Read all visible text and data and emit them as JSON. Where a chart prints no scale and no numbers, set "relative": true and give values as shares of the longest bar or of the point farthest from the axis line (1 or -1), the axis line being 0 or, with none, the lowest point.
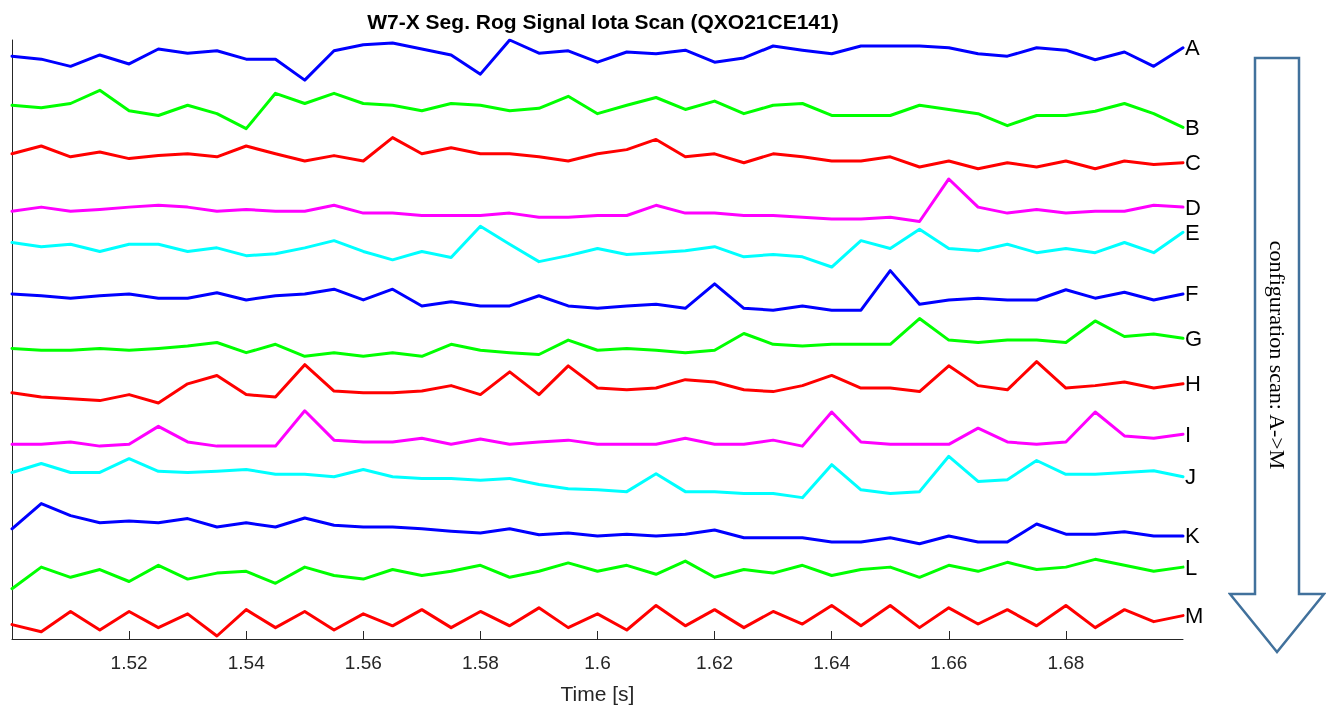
{
  "chart_data": {
    "type": "line",
    "title": "W7-X Seg. Rog Signal Iota Scan (QXO21CE141)",
    "xlabel": "Time [s]",
    "relative": true,
    "legend": false,
    "grid": false,
    "marker": "none",
    "line_style": "solid",
    "tick_labels": "x",
    "xlim": [
      1.5,
      1.7
    ],
    "xticks": [
      1.52,
      1.54,
      1.56,
      1.58,
      1.6,
      1.62,
      1.64,
      1.66,
      1.68
    ],
    "annotations": [
      "configuration scan: A->M"
    ],
    "x": [
      1.5,
      1.505,
      1.51,
      1.515,
      1.52,
      1.525,
      1.53,
      1.535,
      1.54,
      1.545,
      1.55,
      1.555,
      1.56,
      1.565,
      1.57,
      1.575,
      1.58,
      1.585,
      1.59,
      1.595,
      1.6,
      1.605,
      1.61,
      1.615,
      1.62,
      1.625,
      1.63,
      1.635,
      1.64,
      1.645,
      1.65,
      1.655,
      1.66,
      1.665,
      1.67,
      1.675,
      1.68,
      1.685,
      1.69,
      1.695,
      1.7
    ],
    "series": [
      {
        "name": "A",
        "color": "#0000ff",
        "values": [
          0.973,
          0.968,
          0.956,
          0.975,
          0.96,
          0.985,
          0.978,
          0.982,
          0.968,
          0.968,
          0.933,
          0.982,
          0.992,
          0.995,
          0.985,
          0.975,
          0.943,
          1,
          0.978,
          0.982,
          0.963,
          0.98,
          0.977,
          0.983,
          0.963,
          0.97,
          0.99,
          0.983,
          0.977,
          0.99,
          0.99,
          0.99,
          0.987,
          0.977,
          0.973,
          0.987,
          0.983,
          0.967,
          0.98,
          0.956,
          0.987
        ]
      },
      {
        "name": "B",
        "color": "#00ff00",
        "values": [
          0.891,
          0.887,
          0.894,
          0.916,
          0.882,
          0.874,
          0.891,
          0.877,
          0.852,
          0.911,
          0.894,
          0.911,
          0.894,
          0.891,
          0.882,
          0.894,
          0.891,
          0.882,
          0.886,
          0.906,
          0.877,
          0.891,
          0.904,
          0.884,
          0.898,
          0.877,
          0.891,
          0.894,
          0.874,
          0.874,
          0.874,
          0.891,
          0.884,
          0.877,
          0.857,
          0.874,
          0.874,
          0.881,
          0.894,
          0.877,
          0.854
        ]
      },
      {
        "name": "C",
        "color": "#ff0000",
        "values": [
          0.81,
          0.823,
          0.805,
          0.813,
          0.802,
          0.807,
          0.81,
          0.805,
          0.823,
          0.81,
          0.798,
          0.807,
          0.798,
          0.837,
          0.81,
          0.82,
          0.81,
          0.81,
          0.805,
          0.798,
          0.81,
          0.817,
          0.834,
          0.805,
          0.81,
          0.795,
          0.81,
          0.805,
          0.798,
          0.798,
          0.805,
          0.788,
          0.798,
          0.785,
          0.795,
          0.788,
          0.798,
          0.785,
          0.798,
          0.792,
          0.795
        ]
      },
      {
        "name": "D",
        "color": "#ff00ff",
        "values": [
          0.714,
          0.721,
          0.714,
          0.717,
          0.721,
          0.724,
          0.721,
          0.714,
          0.717,
          0.714,
          0.714,
          0.724,
          0.711,
          0.711,
          0.707,
          0.707,
          0.707,
          0.711,
          0.704,
          0.704,
          0.707,
          0.707,
          0.724,
          0.711,
          0.711,
          0.707,
          0.707,
          0.704,
          0.701,
          0.701,
          0.704,
          0.697,
          0.768,
          0.721,
          0.711,
          0.717,
          0.711,
          0.714,
          0.714,
          0.724,
          0.721
        ]
      },
      {
        "name": "E",
        "color": "#00ffff",
        "values": [
          0.662,
          0.655,
          0.659,
          0.647,
          0.659,
          0.659,
          0.647,
          0.653,
          0.64,
          0.643,
          0.653,
          0.665,
          0.647,
          0.633,
          0.647,
          0.637,
          0.689,
          0.659,
          0.63,
          0.64,
          0.652,
          0.642,
          0.645,
          0.648,
          0.655,
          0.638,
          0.642,
          0.638,
          0.621,
          0.665,
          0.652,
          0.684,
          0.652,
          0.648,
          0.659,
          0.645,
          0.652,
          0.645,
          0.662,
          0.645,
          0.679
        ]
      },
      {
        "name": "F",
        "color": "#0000ff",
        "values": [
          0.576,
          0.573,
          0.569,
          0.573,
          0.576,
          0.569,
          0.569,
          0.578,
          0.566,
          0.573,
          0.576,
          0.584,
          0.566,
          0.584,
          0.556,
          0.563,
          0.556,
          0.556,
          0.573,
          0.556,
          0.552,
          0.556,
          0.559,
          0.552,
          0.593,
          0.552,
          0.549,
          0.556,
          0.549,
          0.549,
          0.615,
          0.559,
          0.566,
          0.569,
          0.566,
          0.566,
          0.583,
          0.569,
          0.579,
          0.566,
          0.576
        ]
      },
      {
        "name": "G",
        "color": "#00ff00",
        "values": [
          0.485,
          0.482,
          0.482,
          0.485,
          0.482,
          0.485,
          0.489,
          0.495,
          0.478,
          0.492,
          0.472,
          0.478,
          0.472,
          0.478,
          0.472,
          0.492,
          0.482,
          0.478,
          0.475,
          0.499,
          0.482,
          0.485,
          0.482,
          0.478,
          0.482,
          0.51,
          0.492,
          0.489,
          0.492,
          0.492,
          0.492,
          0.535,
          0.499,
          0.495,
          0.499,
          0.499,
          0.495,
          0.531,
          0.505,
          0.509,
          0.502
        ]
      },
      {
        "name": "H",
        "color": "#ff0000",
        "values": [
          0.411,
          0.404,
          0.401,
          0.398,
          0.408,
          0.394,
          0.426,
          0.44,
          0.408,
          0.404,
          0.458,
          0.414,
          0.411,
          0.411,
          0.414,
          0.423,
          0.408,
          0.446,
          0.408,
          0.456,
          0.419,
          0.416,
          0.419,
          0.433,
          0.429,
          0.416,
          0.413,
          0.423,
          0.44,
          0.419,
          0.419,
          0.413,
          0.456,
          0.423,
          0.416,
          0.463,
          0.419,
          0.423,
          0.429,
          0.419,
          0.426
        ]
      },
      {
        "name": "I",
        "color": "#ff00ff",
        "values": [
          0.325,
          0.325,
          0.329,
          0.322,
          0.325,
          0.355,
          0.329,
          0.322,
          0.322,
          0.322,
          0.381,
          0.332,
          0.329,
          0.329,
          0.335,
          0.325,
          0.334,
          0.325,
          0.329,
          0.332,
          0.325,
          0.325,
          0.325,
          0.335,
          0.325,
          0.325,
          0.332,
          0.322,
          0.379,
          0.329,
          0.325,
          0.325,
          0.325,
          0.352,
          0.329,
          0.325,
          0.329,
          0.379,
          0.339,
          0.335,
          0.342
        ]
      },
      {
        "name": "J",
        "color": "#00ffff",
        "values": [
          0.278,
          0.293,
          0.278,
          0.278,
          0.301,
          0.28,
          0.278,
          0.28,
          0.283,
          0.275,
          0.275,
          0.271,
          0.283,
          0.271,
          0.268,
          0.268,
          0.265,
          0.268,
          0.258,
          0.251,
          0.249,
          0.246,
          0.276,
          0.246,
          0.246,
          0.243,
          0.243,
          0.236,
          0.291,
          0.249,
          0.243,
          0.246,
          0.305,
          0.263,
          0.266,
          0.298,
          0.275,
          0.275,
          0.278,
          0.281,
          0.271
        ]
      },
      {
        "name": "K",
        "color": "#0000ff",
        "values": [
          0.184,
          0.226,
          0.206,
          0.194,
          0.197,
          0.194,
          0.201,
          0.187,
          0.194,
          0.187,
          0.202,
          0.19,
          0.187,
          0.187,
          0.184,
          0.18,
          0.177,
          0.184,
          0.174,
          0.177,
          0.172,
          0.175,
          0.172,
          0.175,
          0.182,
          0.169,
          0.169,
          0.169,
          0.162,
          0.162,
          0.169,
          0.159,
          0.172,
          0.162,
          0.162,
          0.192,
          0.175,
          0.175,
          0.179,
          0.172,
          0.172
        ]
      },
      {
        "name": "L",
        "color": "#00ff00",
        "values": [
          0.084,
          0.12,
          0.103,
          0.116,
          0.096,
          0.123,
          0.1,
          0.11,
          0.113,
          0.093,
          0.12,
          0.106,
          0.1,
          0.116,
          0.106,
          0.113,
          0.123,
          0.103,
          0.113,
          0.127,
          0.113,
          0.123,
          0.108,
          0.13,
          0.103,
          0.116,
          0.11,
          0.123,
          0.106,
          0.116,
          0.12,
          0.103,
          0.123,
          0.113,
          0.128,
          0.116,
          0.12,
          0.133,
          0.123,
          0.113,
          0.12
        ]
      },
      {
        "name": "M",
        "color": "#ff0000",
        "values": [
          0.024,
          0.012,
          0.046,
          0.015,
          0.046,
          0.019,
          0.042,
          0.005,
          0.049,
          0.019,
          0.046,
          0.015,
          0.042,
          0.022,
          0.049,
          0.019,
          0.046,
          0.022,
          0.052,
          0.019,
          0.042,
          0.015,
          0.056,
          0.022,
          0.049,
          0.019,
          0.046,
          0.025,
          0.056,
          0.022,
          0.056,
          0.019,
          0.052,
          0.025,
          0.049,
          0.022,
          0.056,
          0.019,
          0.049,
          0.029,
          0.039
        ]
      }
    ]
  }
}
